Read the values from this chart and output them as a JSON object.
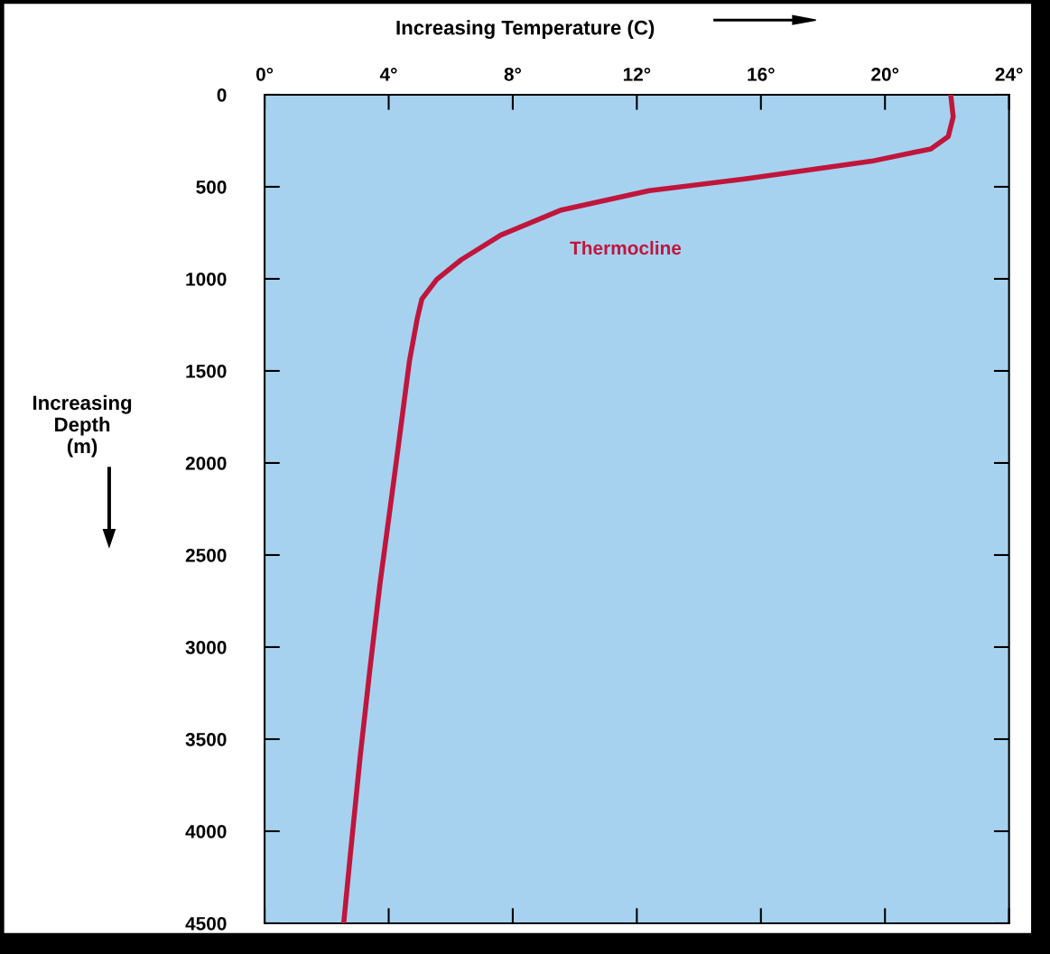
{
  "chart_data": {
    "type": "line",
    "xlabel": "Increasing Temperature (C)",
    "ylabel": "Increasing\nDepth\n(m)",
    "series": [
      {
        "color": "#c0163c",
        "x": [
          22.12,
          22.2,
          22.04,
          21.48,
          19.57,
          15.59,
          12.4,
          9.53,
          7.62,
          6.34,
          5.55,
          5.07,
          4.92,
          4.67,
          4.19,
          3.72,
          3.4,
          3.08,
          2.76,
          2.55
        ],
        "values": [
          0,
          120,
          227,
          294,
          361,
          455,
          521,
          628,
          762,
          896,
          1003,
          1110,
          1217,
          1446,
          2065,
          2656,
          3113,
          3597,
          4135,
          4500
        ]
      }
    ],
    "annotations": [
      "Thermocline"
    ],
    "xlim": [
      0,
      24
    ],
    "xticks": [
      {
        "value": 0,
        "label": "0°"
      },
      {
        "value": 4,
        "label": "4°"
      },
      {
        "value": 8,
        "label": "8°"
      },
      {
        "value": 12,
        "label": "12°"
      },
      {
        "value": 16,
        "label": "16°"
      },
      {
        "value": 20,
        "label": "20°"
      },
      {
        "value": 24,
        "label": "24°"
      }
    ],
    "ylim": [
      4500,
      0
    ],
    "yticks": [
      0,
      500,
      1000,
      1500,
      2000,
      2500,
      3000,
      3500,
      4000,
      4500
    ],
    "grid": false,
    "marker": "none",
    "line_style": "solid"
  }
}
